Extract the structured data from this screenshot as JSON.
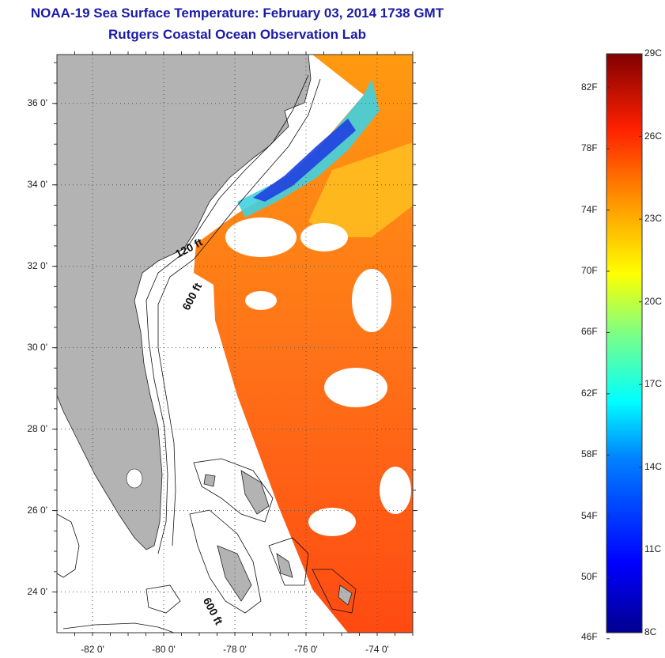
{
  "title": "NOAA-19 Sea Surface Temperature:  February 03, 2014 1738 GMT",
  "subtitle": "Rutgers Coastal Ocean Observation Lab",
  "map": {
    "lon_range": [
      -83,
      -73
    ],
    "lat_range": [
      23,
      37.2
    ],
    "lat_ticks": [
      "36 0'",
      "34 0'",
      "32 0'",
      "30 0'",
      "28 0'",
      "26 0'",
      "24 0'"
    ],
    "lat_values": [
      36,
      34,
      32,
      30,
      28,
      26,
      24
    ],
    "lon_ticks": [
      "-82 0'",
      "-80 0'",
      "-78 0'",
      "-76 0'",
      "-74 0'"
    ],
    "lon_values": [
      -82,
      -80,
      -78,
      -76,
      -74
    ],
    "contour_labels": [
      {
        "text": "120 ft",
        "lon": -79.6,
        "lat": 32.2
      },
      {
        "text": "600 ft",
        "lon": -79.3,
        "lat": 30.9
      },
      {
        "text": "600 ft",
        "lon": -78.9,
        "lat": 23.8
      }
    ],
    "colors": {
      "land": "#b3b3b3",
      "background": "#ffffff"
    }
  },
  "colorbar": {
    "celsius_labels": [
      "29C",
      "26C",
      "23C",
      "20C",
      "17C",
      "14C",
      "11C",
      "8C"
    ],
    "celsius_values": [
      29,
      26,
      23,
      20,
      17,
      14,
      11,
      8
    ],
    "fahrenheit_labels": [
      "82F",
      "78F",
      "74F",
      "70F",
      "66F",
      "62F",
      "58F",
      "54F",
      "50F",
      "46F"
    ],
    "fahrenheit_values": [
      82,
      78,
      74,
      70,
      66,
      62,
      58,
      54,
      50,
      46
    ],
    "range_c": [
      8,
      29
    ]
  }
}
